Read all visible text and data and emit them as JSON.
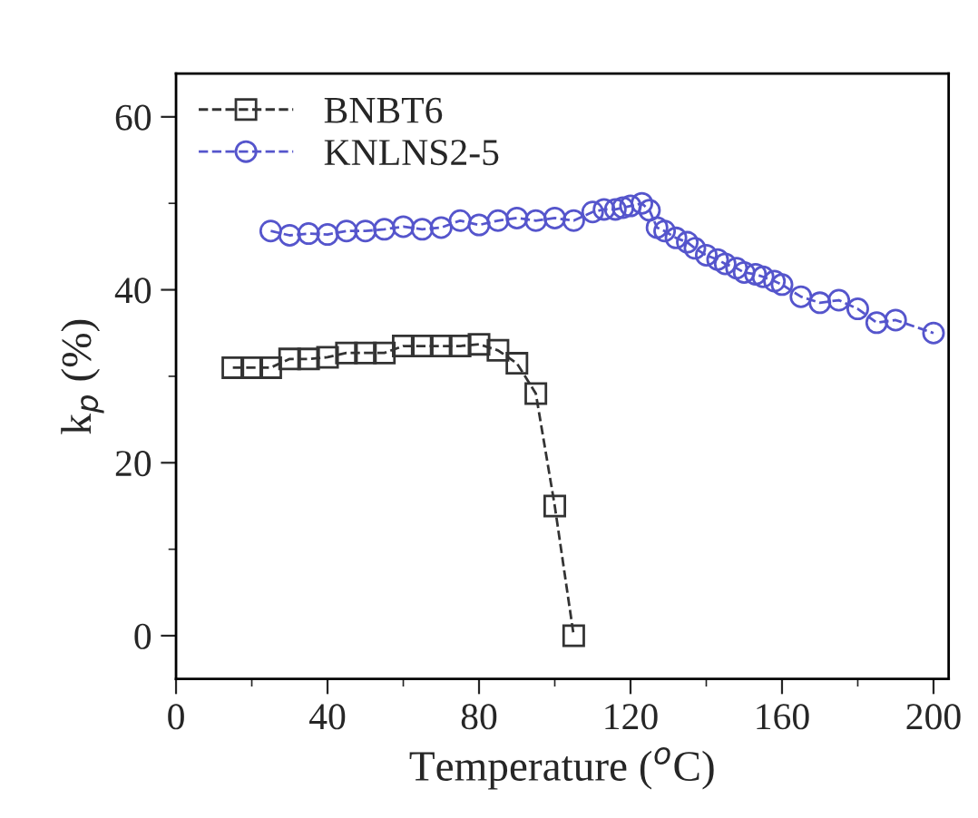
{
  "chart_data": {
    "type": "line",
    "xlabel": "Temperature ($^{o}$C)",
    "ylabel": "k$_{p}$ (%)",
    "xlim": [
      0,
      204
    ],
    "ylim": [
      -5,
      65
    ],
    "xticks": [
      0,
      40,
      80,
      120,
      160,
      200
    ],
    "yticks": [
      0,
      20,
      40,
      60
    ],
    "legend": "top left",
    "grid": false,
    "line_style": "dashed",
    "series": [
      {
        "name": "BNBT6",
        "color": "#333333",
        "marker": "square",
        "x": [
          15,
          20,
          25,
          30,
          35,
          40,
          45,
          50,
          55,
          60,
          65,
          70,
          75,
          80,
          85,
          90,
          95,
          100,
          105
        ],
        "values": [
          31,
          31,
          31,
          32,
          32,
          32.2,
          32.7,
          32.7,
          32.7,
          33.5,
          33.5,
          33.5,
          33.5,
          33.7,
          33,
          31.5,
          28,
          15,
          0
        ]
      },
      {
        "name": "KNLNS2-5",
        "color": "#5555cc",
        "marker": "circle",
        "x": [
          25,
          30,
          35,
          40,
          45,
          50,
          55,
          60,
          65,
          70,
          75,
          80,
          85,
          90,
          95,
          100,
          105,
          110,
          113,
          116,
          118,
          120,
          123,
          125,
          127,
          129,
          132,
          135,
          137,
          140,
          143,
          145,
          148,
          150,
          153,
          155,
          158,
          160,
          165,
          170,
          175,
          180,
          185,
          190,
          200
        ],
        "values": [
          46.8,
          46.3,
          46.5,
          46.4,
          46.8,
          46.8,
          47,
          47.3,
          47,
          47.2,
          48,
          47.5,
          48,
          48.3,
          48,
          48.3,
          48,
          49,
          49.3,
          49.3,
          49.5,
          49.7,
          50,
          49.2,
          47.2,
          46.8,
          46,
          45.5,
          44.8,
          44,
          43.5,
          43,
          42.5,
          42,
          41.8,
          41.5,
          41,
          40.6,
          39.2,
          38.5,
          38.8,
          37.8,
          36.2,
          36.5,
          35
        ]
      }
    ]
  }
}
